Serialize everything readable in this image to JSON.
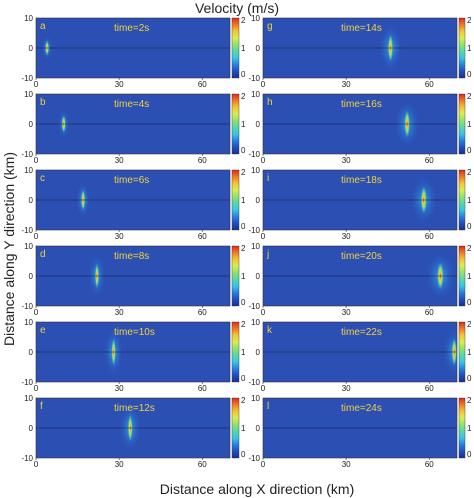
{
  "figure": {
    "top_label": "Velocity (m/s)",
    "xlabel": "Distance along X direction (km)",
    "ylabel": "Distance along Y direction (km)"
  },
  "colormap": [
    "#1a2f8f",
    "#1f4fc2",
    "#2a7fe0",
    "#36c6e6",
    "#56d6a8",
    "#8fe36a",
    "#d6ef4e",
    "#f5c431",
    "#f07a24",
    "#e0261d"
  ],
  "background_color": "#2b4fb3",
  "panel_text_color": "#f2d23a",
  "chart_data": {
    "type": "heatmap",
    "xlim": [
      0,
      70
    ],
    "ylim": [
      -10,
      10
    ],
    "xticks": [
      "0",
      "30",
      "60"
    ],
    "yticks": [
      "10",
      "0",
      "-10"
    ],
    "colorbar_ticks": [
      "2",
      "1",
      "0"
    ],
    "colorbar_partial_ticks": [
      "2",
      "1",
      "0"
    ],
    "panels": [
      {
        "letter": "a",
        "time": "time=2s",
        "source_x": 4,
        "spread": 1.2
      },
      {
        "letter": "g",
        "time": "time=14s",
        "source_x": 46,
        "spread": 2.8
      },
      {
        "letter": "b",
        "time": "time=4s",
        "source_x": 10,
        "spread": 1.4
      },
      {
        "letter": "h",
        "time": "time=16s",
        "source_x": 52,
        "spread": 3.0
      },
      {
        "letter": "c",
        "time": "time=6s",
        "source_x": 17,
        "spread": 1.7
      },
      {
        "letter": "i",
        "time": "time=18s",
        "source_x": 58,
        "spread": 3.3
      },
      {
        "letter": "d",
        "time": "time=8s",
        "source_x": 22,
        "spread": 2.0
      },
      {
        "letter": "j",
        "time": "time=20s",
        "source_x": 64,
        "spread": 3.6
      },
      {
        "letter": "e",
        "time": "time=10s",
        "source_x": 28,
        "spread": 2.3
      },
      {
        "letter": "k",
        "time": "time=22s",
        "source_x": 69,
        "spread": 2.8
      },
      {
        "letter": "f",
        "time": "time=12s",
        "source_x": 34,
        "spread": 2.6
      },
      {
        "letter": "l",
        "time": "time=24s",
        "source_x": 72,
        "spread": 2.0
      }
    ]
  }
}
